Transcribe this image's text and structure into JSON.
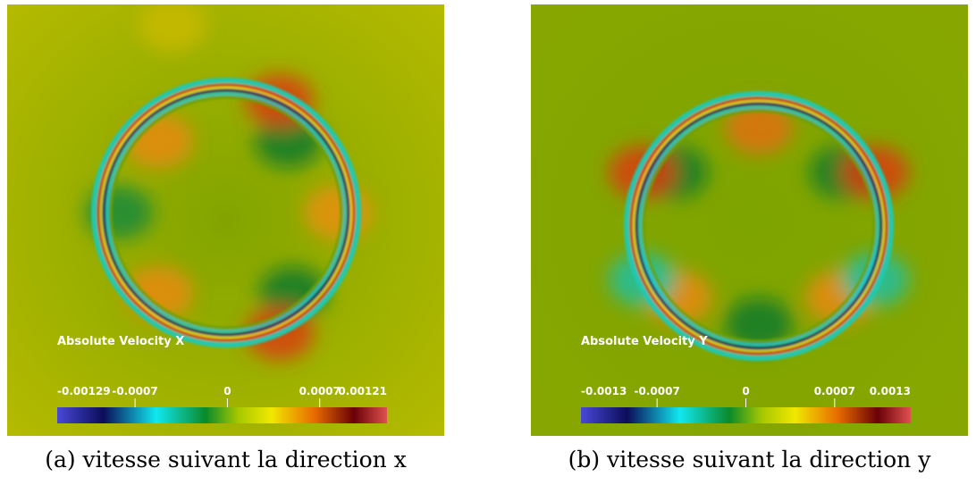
{
  "panels": [
    {
      "title": "Absolute Velocity X",
      "colorbar": {
        "range": [
          -0.00129,
          0.00121
        ],
        "ticks": [
          -0.0007,
          0,
          0.0007
        ]
      },
      "caption": "(a) vitesse suivant la direction x"
    },
    {
      "title": "Absolute Velocity Y",
      "colorbar": {
        "range": [
          -0.0013,
          0.0013
        ],
        "ticks": [
          -0.0007,
          0,
          0.0007
        ]
      },
      "caption": "(b) vitesse suivant la direction y"
    }
  ]
}
